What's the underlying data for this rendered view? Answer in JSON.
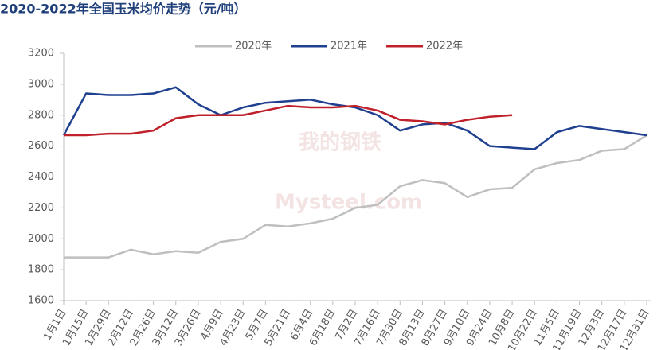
{
  "chart_data": {
    "type": "line",
    "title": "2020-2022年全国玉米均价走势（元/吨）",
    "watermark": [
      "我的钢铁",
      "Mysteel.com"
    ],
    "categories": [
      "1月1日",
      "1月15日",
      "1月29日",
      "2月12日",
      "2月26日",
      "3月12日",
      "3月26日",
      "4月9日",
      "4月23日",
      "5月7日",
      "5月21日",
      "6月4日",
      "6月18日",
      "7月2日",
      "7月16日",
      "7月30日",
      "8月13日",
      "8月27日",
      "9月10日",
      "9月24日",
      "10月8日",
      "10月22日",
      "11月5日",
      "11月19日",
      "12月3日",
      "12月17日",
      "12月31日"
    ],
    "series": [
      {
        "name": "2020年",
        "color": "#bfbfbf",
        "values": [
          1880,
          1880,
          1880,
          1930,
          1900,
          1920,
          1910,
          1980,
          2000,
          2090,
          2080,
          2100,
          2130,
          2200,
          2220,
          2340,
          2380,
          2360,
          2270,
          2320,
          2330,
          2450,
          2490,
          2510,
          2570,
          2580,
          2670
        ]
      },
      {
        "name": "2021年",
        "color": "#1f3f8f",
        "values": [
          2670,
          2940,
          2930,
          2930,
          2940,
          2980,
          2870,
          2800,
          2850,
          2880,
          2890,
          2900,
          2870,
          2850,
          2800,
          2700,
          2740,
          2750,
          2700,
          2600,
          2590,
          2580,
          2690,
          2730,
          2710,
          2690,
          2670
        ]
      },
      {
        "name": "2022年",
        "color": "#c0202a",
        "values": [
          2670,
          2670,
          2680,
          2680,
          2700,
          2780,
          2800,
          2800,
          2800,
          2830,
          2860,
          2850,
          2850,
          2860,
          2830,
          2770,
          2760,
          2740,
          2770,
          2790,
          2800,
          null,
          null,
          null,
          null,
          null,
          null
        ]
      }
    ],
    "ylim": [
      1600,
      3200
    ],
    "yticks": [
      1600,
      1800,
      2000,
      2200,
      2400,
      2600,
      2800,
      3000,
      3200
    ],
    "legend": "top"
  }
}
